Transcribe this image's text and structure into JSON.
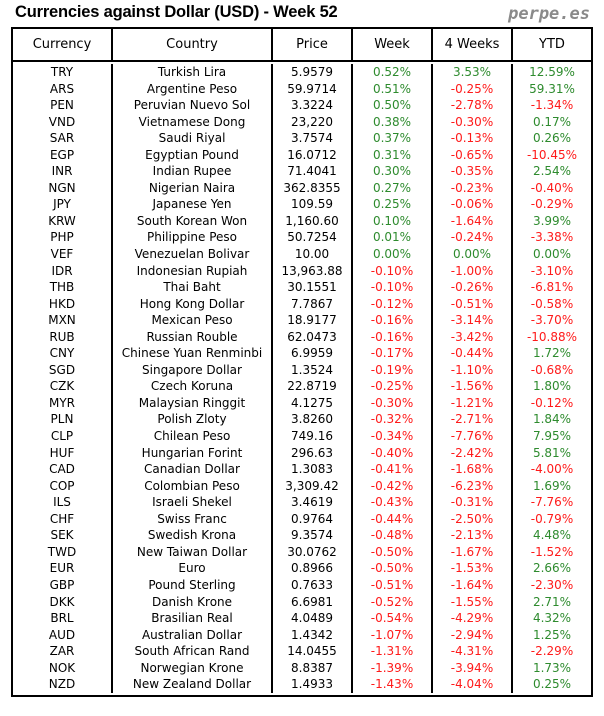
{
  "title": "Currencies against Dollar (USD) - Week 52",
  "brand": "perpe.es",
  "colors": {
    "positive": "#2e8b2e",
    "negative": "#ff1a1a"
  },
  "headers": [
    "Currency",
    "Country",
    "Price",
    "Week",
    "4 Weeks",
    "YTD"
  ],
  "rows": [
    [
      "TRY",
      "Turkish Lira",
      "5.9579",
      "0.52%",
      "3.53%",
      "12.59%"
    ],
    [
      "ARS",
      "Argentine Peso",
      "59.9714",
      "0.51%",
      "-0.25%",
      "59.31%"
    ],
    [
      "PEN",
      "Peruvian Nuevo Sol",
      "3.3224",
      "0.50%",
      "-2.78%",
      "-1.34%"
    ],
    [
      "VND",
      "Vietnamese Dong",
      "23,220",
      "0.38%",
      "-0.30%",
      "0.17%"
    ],
    [
      "SAR",
      "Saudi Riyal",
      "3.7574",
      "0.37%",
      "-0.13%",
      "0.26%"
    ],
    [
      "EGP",
      "Egyptian Pound",
      "16.0712",
      "0.31%",
      "-0.65%",
      "-10.45%"
    ],
    [
      "INR",
      "Indian Rupee",
      "71.4041",
      "0.30%",
      "-0.35%",
      "2.54%"
    ],
    [
      "NGN",
      "Nigerian Naira",
      "362.8355",
      "0.27%",
      "-0.23%",
      "-0.40%"
    ],
    [
      "JPY",
      "Japanese Yen",
      "109.59",
      "0.25%",
      "-0.06%",
      "-0.29%"
    ],
    [
      "KRW",
      "South Korean Won",
      "1,160.60",
      "0.10%",
      "-1.64%",
      "3.99%"
    ],
    [
      "PHP",
      "Philippine Peso",
      "50.7254",
      "0.01%",
      "-0.24%",
      "-3.38%"
    ],
    [
      "VEF",
      "Venezuelan Bolivar",
      "10.00",
      "0.00%",
      "0.00%",
      "0.00%"
    ],
    [
      "IDR",
      "Indonesian Rupiah",
      "13,963.88",
      "-0.10%",
      "-1.00%",
      "-3.10%"
    ],
    [
      "THB",
      "Thai Baht",
      "30.1551",
      "-0.10%",
      "-0.26%",
      "-6.81%"
    ],
    [
      "HKD",
      "Hong Kong Dollar",
      "7.7867",
      "-0.12%",
      "-0.51%",
      "-0.58%"
    ],
    [
      "MXN",
      "Mexican Peso",
      "18.9177",
      "-0.16%",
      "-3.14%",
      "-3.70%"
    ],
    [
      "RUB",
      "Russian Rouble",
      "62.0473",
      "-0.16%",
      "-3.42%",
      "-10.88%"
    ],
    [
      "CNY",
      "Chinese Yuan Renminbi",
      "6.9959",
      "-0.17%",
      "-0.44%",
      "1.72%"
    ],
    [
      "SGD",
      "Singapore Dollar",
      "1.3524",
      "-0.19%",
      "-1.10%",
      "-0.68%"
    ],
    [
      "CZK",
      "Czech Koruna",
      "22.8719",
      "-0.25%",
      "-1.56%",
      "1.80%"
    ],
    [
      "MYR",
      "Malaysian Ringgit",
      "4.1275",
      "-0.30%",
      "-1.21%",
      "-0.12%"
    ],
    [
      "PLN",
      "Polish Zloty",
      "3.8260",
      "-0.32%",
      "-2.71%",
      "1.84%"
    ],
    [
      "CLP",
      "Chilean Peso",
      "749.16",
      "-0.34%",
      "-7.76%",
      "7.95%"
    ],
    [
      "HUF",
      "Hungarian Forint",
      "296.63",
      "-0.40%",
      "-2.42%",
      "5.81%"
    ],
    [
      "CAD",
      "Canadian Dollar",
      "1.3083",
      "-0.41%",
      "-1.68%",
      "-4.00%"
    ],
    [
      "COP",
      "Colombian Peso",
      "3,309.42",
      "-0.42%",
      "-6.23%",
      "1.69%"
    ],
    [
      "ILS",
      "Israeli Shekel",
      "3.4619",
      "-0.43%",
      "-0.31%",
      "-7.76%"
    ],
    [
      "CHF",
      "Swiss Franc",
      "0.9764",
      "-0.44%",
      "-2.50%",
      "-0.79%"
    ],
    [
      "SEK",
      "Swedish Krona",
      "9.3574",
      "-0.48%",
      "-2.13%",
      "4.48%"
    ],
    [
      "TWD",
      "New Taiwan Dollar",
      "30.0762",
      "-0.50%",
      "-1.67%",
      "-1.52%"
    ],
    [
      "EUR",
      "Euro",
      "0.8966",
      "-0.50%",
      "-1.53%",
      "2.66%"
    ],
    [
      "GBP",
      "Pound Sterling",
      "0.7633",
      "-0.51%",
      "-1.64%",
      "-2.30%"
    ],
    [
      "DKK",
      "Danish Krone",
      "6.6981",
      "-0.52%",
      "-1.55%",
      "2.71%"
    ],
    [
      "BRL",
      "Brasilian Real",
      "4.0489",
      "-0.54%",
      "-4.29%",
      "4.32%"
    ],
    [
      "AUD",
      "Australian Dollar",
      "1.4342",
      "-1.07%",
      "-2.94%",
      "1.25%"
    ],
    [
      "ZAR",
      "South African Rand",
      "14.0455",
      "-1.31%",
      "-4.31%",
      "-2.29%"
    ],
    [
      "NOK",
      "Norwegian Krone",
      "8.8387",
      "-1.39%",
      "-3.94%",
      "1.73%"
    ],
    [
      "NZD",
      "New Zealand Dollar",
      "1.4933",
      "-1.43%",
      "-4.04%",
      "0.25%"
    ]
  ]
}
